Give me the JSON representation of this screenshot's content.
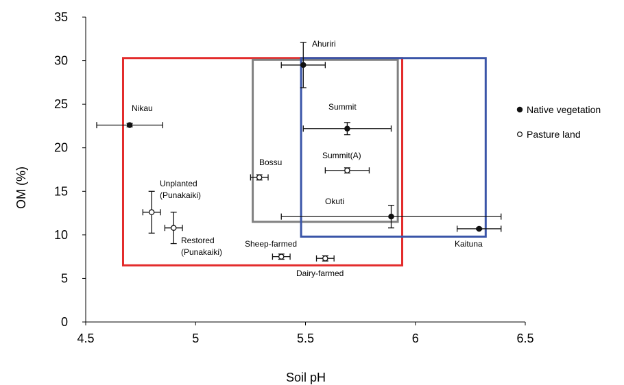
{
  "chart_data": {
    "type": "scatter",
    "xlabel": "Soil pH",
    "ylabel": "OM (%)",
    "xlim": [
      4.5,
      6.5
    ],
    "ylim": [
      0,
      35
    ],
    "x_ticks": [
      4.5,
      5,
      5.5,
      6,
      6.5
    ],
    "y_ticks": [
      0,
      5,
      10,
      15,
      20,
      25,
      30,
      35
    ],
    "x_tick_labels": [
      "4.5",
      "5",
      "5.5",
      "6",
      "6.5"
    ],
    "y_tick_labels": [
      "0",
      "5",
      "10",
      "15",
      "20",
      "25",
      "30",
      "35"
    ],
    "grid": false,
    "legend_position": "right",
    "series": [
      {
        "name": "Native vegetation",
        "marker": "filled",
        "points": [
          {
            "label": "Nikau",
            "x": 4.7,
            "y": 22.6,
            "x_err": 0.15,
            "y_err": 0.2
          },
          {
            "label": "Ahuriri",
            "x": 5.49,
            "y": 29.5,
            "x_err": 0.1,
            "y_err": 2.6
          },
          {
            "label": "Summit",
            "x": 5.69,
            "y": 22.2,
            "x_err": 0.2,
            "y_err": 0.7
          },
          {
            "label": "Okuti",
            "x": 5.89,
            "y": 12.1,
            "x_err": 0.5,
            "y_err": 1.3
          },
          {
            "label": "Kaituna",
            "x": 6.29,
            "y": 10.7,
            "x_err": 0.1,
            "y_err": 0.1
          }
        ]
      },
      {
        "name": "Pasture land",
        "marker": "open",
        "points": [
          {
            "label": "Unplanted (Punakaiki)",
            "x": 4.8,
            "y": 12.6,
            "x_err": 0.04,
            "y_err": 2.4
          },
          {
            "label": "Restored (Punakaiki)",
            "x": 4.9,
            "y": 10.8,
            "x_err": 0.04,
            "y_err": 1.8
          },
          {
            "label": "Bossu",
            "x": 5.29,
            "y": 16.6,
            "x_err": 0.04,
            "y_err": 0.3
          },
          {
            "label": "Summit(A)",
            "x": 5.69,
            "y": 17.4,
            "x_err": 0.1,
            "y_err": 0.3
          },
          {
            "label": "Sheep-farmed",
            "x": 5.39,
            "y": 7.5,
            "x_err": 0.04,
            "y_err": 0.3
          },
          {
            "label": "Dairy-farmed",
            "x": 5.59,
            "y": 7.3,
            "x_err": 0.04,
            "y_err": 0.3
          }
        ]
      }
    ],
    "groupings": [
      {
        "color": "#e32b2b",
        "x_range": [
          4.67,
          5.94
        ],
        "y_range": [
          6.5,
          30.3
        ]
      },
      {
        "color": "#808080",
        "x_range": [
          5.26,
          5.92
        ],
        "y_range": [
          11.5,
          30.1
        ]
      },
      {
        "color": "#3a55a8",
        "x_range": [
          5.48,
          6.32
        ],
        "y_range": [
          9.8,
          30.3
        ]
      }
    ]
  },
  "point_label_lines": {
    "Nikau": [
      "Nikau"
    ],
    "Ahuriri": [
      "Ahuriri"
    ],
    "Summit": [
      "Summit"
    ],
    "Okuti": [
      "Okuti"
    ],
    "Kaituna": [
      "Kaituna"
    ],
    "Unplanted (Punakaiki)": [
      "Unplanted",
      "(Punakaiki)"
    ],
    "Restored (Punakaiki)": [
      "Restored",
      "(Punakaiki)"
    ],
    "Bossu": [
      "Bossu"
    ],
    "Summit(A)": [
      "Summit(A)"
    ],
    "Sheep-farmed": [
      "Sheep-farmed"
    ],
    "Dairy-farmed": [
      "Dairy-farmed"
    ]
  }
}
